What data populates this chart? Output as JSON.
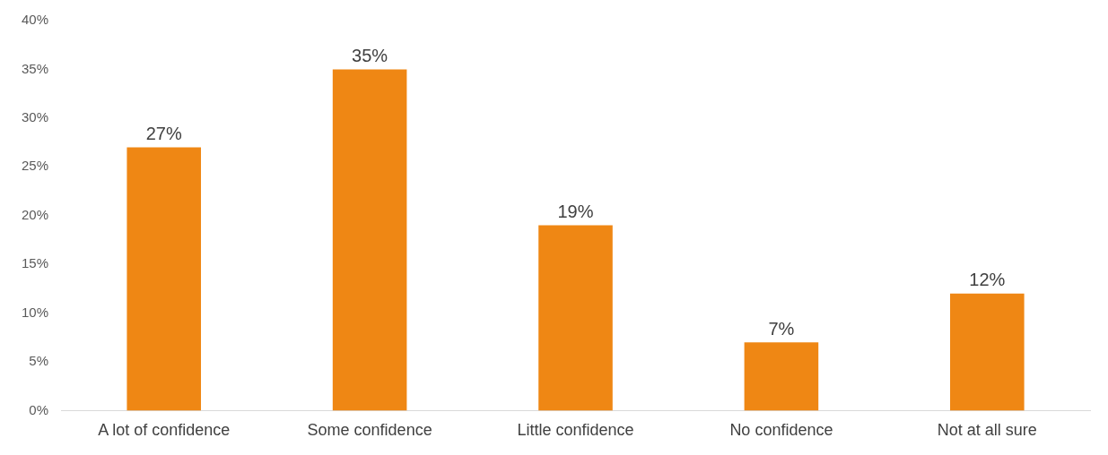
{
  "chart_data": {
    "type": "bar",
    "categories": [
      "A lot of confidence",
      "Some confidence",
      "Little confidence",
      "No confidence",
      "Not at all sure"
    ],
    "values": [
      27,
      35,
      19,
      7,
      12
    ],
    "color": "#ef8714",
    "value_labels": [
      "27%",
      "35%",
      "19%",
      "7%",
      "12%"
    ],
    "ylim": [
      0,
      40
    ],
    "yticks": [
      {
        "value": 0,
        "label": "0%"
      },
      {
        "value": 5,
        "label": "5%"
      },
      {
        "value": 10,
        "label": "10%"
      },
      {
        "value": 15,
        "label": "15%"
      },
      {
        "value": 20,
        "label": "20%"
      },
      {
        "value": 25,
        "label": "25%"
      },
      {
        "value": 30,
        "label": "30%"
      },
      {
        "value": 35,
        "label": "35%"
      },
      {
        "value": 40,
        "label": "40%"
      }
    ],
    "grid": false
  }
}
